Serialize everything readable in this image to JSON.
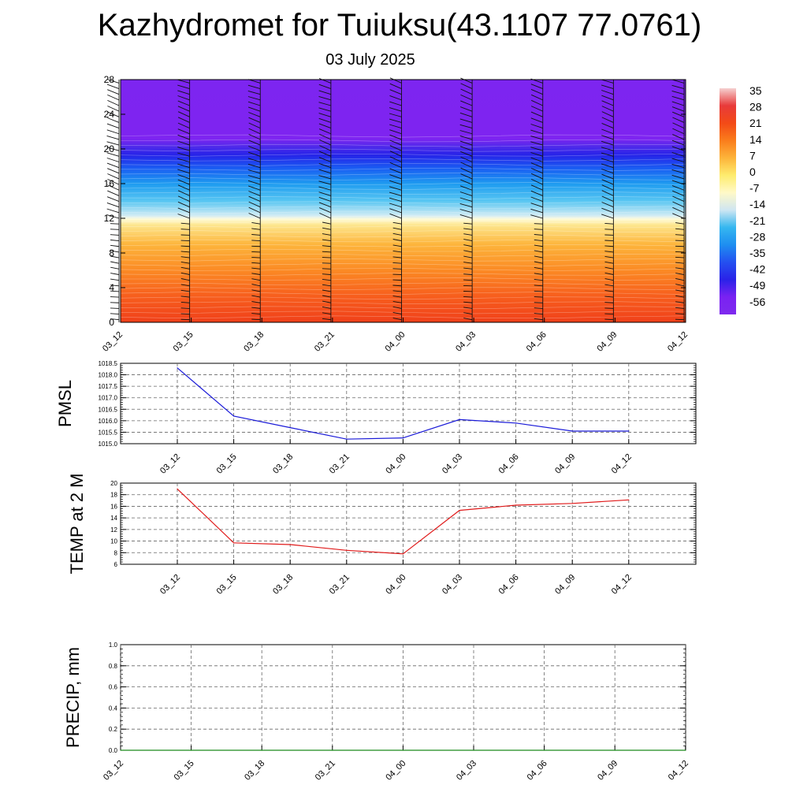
{
  "header": {
    "title": "Kazhydromet for Tuiuksu(43.1107 77.0761)",
    "date": "03 July 2025"
  },
  "chart_data": [
    {
      "type": "heatmap",
      "x_ticks": [
        "03_12",
        "03_15",
        "03_18",
        "03_21",
        "04_00",
        "04_03",
        "04_06",
        "04_09",
        "04_12"
      ],
      "y_ticks": [
        0,
        4,
        8,
        12,
        16,
        20,
        24,
        28
      ],
      "ylim": [
        0,
        28
      ],
      "colorbar": {
        "labels": [
          "35",
          "28",
          "21",
          "14",
          "7",
          "0",
          "-7",
          "-14",
          "-21",
          "-28",
          "-35",
          "-42",
          "-49",
          "-56"
        ],
        "stops": [
          "#f5cfcf",
          "#e83a3a",
          "#f34a17",
          "#fa7d1c",
          "#fdb43a",
          "#feec6e",
          "#fff9c8",
          "#cfe6f2",
          "#35b7f0",
          "#1e8ef0",
          "#2450f0",
          "#2a22e8",
          "#7a22f2",
          "#7e2aee"
        ]
      },
      "heat_profile": [
        {
          "y": 0,
          "color": "#f0401a"
        },
        {
          "y": 3,
          "color": "#f75e1d"
        },
        {
          "y": 6,
          "color": "#fb8a24"
        },
        {
          "y": 9,
          "color": "#fdb53c"
        },
        {
          "y": 11.2,
          "color": "#fde58c"
        },
        {
          "y": 11.9,
          "color": "#fffbd8"
        },
        {
          "y": 12.3,
          "color": "#d3ecf4"
        },
        {
          "y": 14,
          "color": "#58c6f2"
        },
        {
          "y": 16,
          "color": "#1e9bf0"
        },
        {
          "y": 17.8,
          "color": "#1a5cf2"
        },
        {
          "y": 19.3,
          "color": "#2623e8"
        },
        {
          "y": 20.2,
          "color": "#4c2aea"
        },
        {
          "y": 21.2,
          "color": "#7e24f0"
        },
        {
          "y": 28,
          "color": "#7d25f0"
        }
      ],
      "wind_barbs": "present"
    },
    {
      "type": "line",
      "ylabel": "PMSL",
      "x": [
        "03_12",
        "03_15",
        "03_18",
        "03_21",
        "04_00",
        "04_03",
        "04_06",
        "04_09",
        "04_12"
      ],
      "values": [
        1018.3,
        1016.2,
        1015.7,
        1015.2,
        1015.25,
        1016.05,
        1015.9,
        1015.55,
        1015.55
      ],
      "ylim": [
        1015.0,
        1018.5
      ],
      "y_ticks": [
        "1015.0",
        "1015.5",
        "1016.0",
        "1016.5",
        "1017.0",
        "1017.5",
        "1018.0",
        "1018.5"
      ],
      "color": "#1a1ad8"
    },
    {
      "type": "line",
      "ylabel": "TEMP at 2 M",
      "x": [
        "03_12",
        "03_15",
        "03_18",
        "03_21",
        "04_00",
        "04_03",
        "04_06",
        "04_09",
        "04_12"
      ],
      "values": [
        19.0,
        9.7,
        9.4,
        8.4,
        7.8,
        15.3,
        16.2,
        16.5,
        17.1
      ],
      "ylim": [
        6,
        20
      ],
      "y_ticks": [
        "6",
        "8",
        "10",
        "12",
        "14",
        "16",
        "18",
        "20"
      ],
      "color": "#e01a1a"
    },
    {
      "type": "line",
      "ylabel": "PRECIP, mm",
      "x": [
        "03_12",
        "03_15",
        "03_18",
        "03_21",
        "04_00",
        "04_03",
        "04_06",
        "04_09",
        "04_12"
      ],
      "values": [
        0,
        0,
        0,
        0,
        0,
        0,
        0,
        0,
        0
      ],
      "ylim": [
        0,
        1
      ],
      "y_ticks": [
        "0.0",
        "0.2",
        "0.4",
        "0.6",
        "0.8",
        "1.0"
      ],
      "color": "#1a8a1a"
    }
  ]
}
